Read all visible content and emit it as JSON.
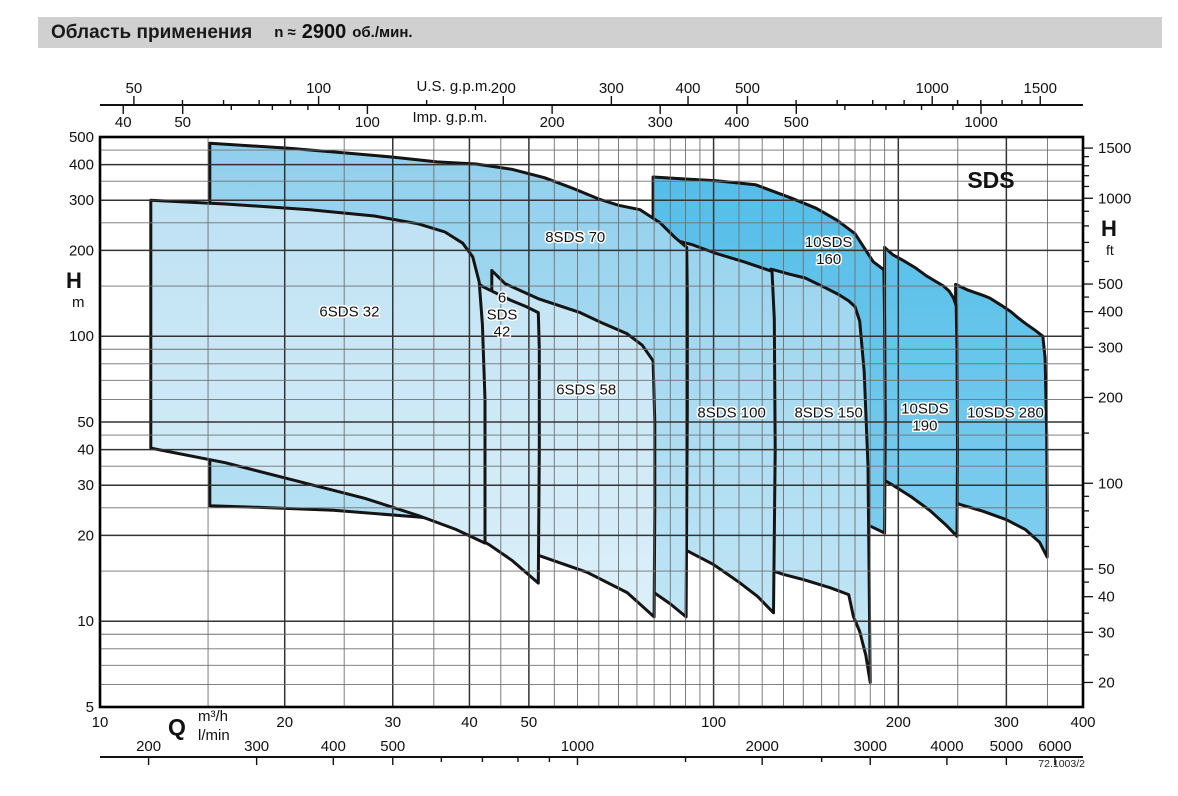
{
  "header": {
    "title": "Область применения",
    "n_prefix": "n ≈",
    "n_value": "2900",
    "n_unit": "об./мин."
  },
  "branding": {
    "series_label": "SDS",
    "doc_code": "72.1003/2"
  },
  "axes": {
    "us_gpm": {
      "label": "U.S. g.p.m.",
      "to_m3h": 0.22712,
      "ticks": [
        [
          50,
          1
        ],
        [
          60,
          0
        ],
        [
          70,
          0
        ],
        [
          80,
          0
        ],
        [
          90,
          0
        ],
        [
          100,
          1
        ],
        [
          150,
          0
        ],
        [
          200,
          1
        ],
        [
          300,
          1
        ],
        [
          400,
          1
        ],
        [
          500,
          1
        ],
        [
          600,
          0
        ],
        [
          700,
          0
        ],
        [
          800,
          0
        ],
        [
          900,
          0
        ],
        [
          1000,
          1
        ],
        [
          1100,
          0
        ],
        [
          1200,
          0
        ],
        [
          1300,
          0
        ],
        [
          1400,
          0
        ],
        [
          1500,
          1
        ]
      ]
    },
    "imp_gpm": {
      "label": "Imp. g.p.m.",
      "to_m3h": 0.27277,
      "ticks": [
        [
          40,
          1
        ],
        [
          50,
          1
        ],
        [
          60,
          0
        ],
        [
          70,
          0
        ],
        [
          80,
          0
        ],
        [
          90,
          0
        ],
        [
          100,
          1
        ],
        [
          150,
          0
        ],
        [
          200,
          1
        ],
        [
          300,
          1
        ],
        [
          400,
          1
        ],
        [
          500,
          1
        ],
        [
          600,
          0
        ],
        [
          700,
          0
        ],
        [
          800,
          0
        ],
        [
          900,
          0
        ],
        [
          1000,
          1
        ]
      ]
    },
    "h_m": {
      "label": "H",
      "unit": "m",
      "labels": [
        5,
        10,
        20,
        30,
        40,
        50,
        100,
        200,
        300,
        400,
        500
      ]
    },
    "h_ft": {
      "label": "H",
      "unit": "ft",
      "to_m": 0.3048,
      "ticks": [
        [
          20,
          1
        ],
        [
          25,
          0
        ],
        [
          30,
          1
        ],
        [
          35,
          0
        ],
        [
          40,
          1
        ],
        [
          45,
          0
        ],
        [
          50,
          1
        ],
        [
          60,
          0
        ],
        [
          70,
          0
        ],
        [
          80,
          0
        ],
        [
          90,
          0
        ],
        [
          100,
          1
        ],
        [
          150,
          0
        ],
        [
          200,
          1
        ],
        [
          250,
          0
        ],
        [
          300,
          1
        ],
        [
          350,
          0
        ],
        [
          400,
          1
        ],
        [
          450,
          0
        ],
        [
          500,
          1
        ],
        [
          600,
          0
        ],
        [
          700,
          0
        ],
        [
          800,
          0
        ],
        [
          900,
          0
        ],
        [
          1000,
          1
        ],
        [
          1100,
          0
        ],
        [
          1200,
          0
        ],
        [
          1300,
          0
        ],
        [
          1400,
          0
        ],
        [
          1500,
          1
        ]
      ]
    },
    "q_m3h": {
      "label": "Q",
      "unit": "m³/h",
      "labels": [
        10,
        20,
        30,
        40,
        50,
        100,
        200,
        300,
        400
      ]
    },
    "l_min": {
      "unit": "l/min",
      "to_m3h": 0.06,
      "ticks": [
        [
          200,
          1
        ],
        [
          300,
          1
        ],
        [
          400,
          1
        ],
        [
          500,
          1
        ],
        [
          600,
          0
        ],
        [
          700,
          0
        ],
        [
          800,
          0
        ],
        [
          900,
          0
        ],
        [
          1000,
          1
        ],
        [
          1500,
          0
        ],
        [
          2000,
          1
        ],
        [
          2500,
          0
        ],
        [
          3000,
          1
        ],
        [
          4000,
          1
        ],
        [
          5000,
          1
        ],
        [
          6000,
          1
        ]
      ]
    }
  },
  "chart_data": {
    "type": "area",
    "title": "Область применения n ≈ 2900 об./мин.",
    "x_axis": {
      "label": "Q",
      "units": [
        "m³/h",
        "l/min",
        "U.S. g.p.m.",
        "Imp. g.p.m."
      ],
      "scale": "log",
      "range_m3h": [
        10,
        400
      ]
    },
    "y_axis": {
      "label": "H",
      "units": [
        "m",
        "ft"
      ],
      "scale": "log",
      "range_m": [
        5,
        500
      ]
    },
    "grid": {
      "q_lines": [
        10,
        15,
        20,
        25,
        30,
        35,
        40,
        45,
        50,
        55,
        60,
        65,
        70,
        75,
        80,
        85,
        90,
        95,
        100,
        110,
        120,
        130,
        140,
        150,
        160,
        170,
        180,
        190,
        200,
        250,
        300,
        350,
        400
      ],
      "q_major": [
        10,
        20,
        30,
        40,
        50,
        100,
        200,
        300,
        400
      ],
      "h_lines": [
        5,
        6,
        7,
        8,
        9,
        10,
        15,
        20,
        25,
        30,
        35,
        40,
        45,
        50,
        60,
        70,
        80,
        90,
        100,
        150,
        200,
        250,
        300,
        350,
        400,
        450,
        500
      ],
      "h_major": [
        5,
        10,
        20,
        30,
        40,
        50,
        100,
        200,
        300,
        400,
        500
      ]
    },
    "families": {
      "sds6": {
        "top": "#badff2",
        "bottom": "#e2f3fb"
      },
      "sds8": {
        "top": "#8fcfec",
        "bottom": "#c9e9f7"
      },
      "sds10": {
        "top": "#4fbce7",
        "bottom": "#90d4f2"
      }
    },
    "stroke_color": "#141414",
    "regions": [
      {
        "id": "10sds-280",
        "family": "sds10",
        "label_lines": [
          "10SDS 280"
        ],
        "label_anchor": [
          299,
          54
        ],
        "points": [
          [
            248,
            152
          ],
          [
            260,
            145
          ],
          [
            275,
            139
          ],
          [
            282,
            136
          ],
          [
            295,
            128
          ],
          [
            305,
            122
          ],
          [
            312,
            117
          ],
          [
            322,
            111
          ],
          [
            334,
            105
          ],
          [
            344,
            100
          ],
          [
            347,
            84
          ],
          [
            349,
            45
          ],
          [
            349.7,
            25
          ],
          [
            349.5,
            16.8
          ],
          [
            340,
            18.9
          ],
          [
            322,
            21
          ],
          [
            300,
            22.7
          ],
          [
            275,
            24.3
          ],
          [
            252,
            25.7
          ],
          [
            248,
            26.1
          ]
        ]
      },
      {
        "id": "10sds-190",
        "family": "sds10",
        "label_lines": [
          "10SDS",
          "190"
        ],
        "label_anchor": [
          221,
          52
        ],
        "points": [
          [
            190,
            205
          ],
          [
            196,
            193
          ],
          [
            204,
            184
          ],
          [
            213,
            174
          ],
          [
            222,
            163
          ],
          [
            231,
            155
          ],
          [
            237,
            150
          ],
          [
            242,
            144
          ],
          [
            246,
            136
          ],
          [
            248.5,
            128
          ],
          [
            249.3,
            90
          ],
          [
            249.7,
            40
          ],
          [
            249.3,
            19.85
          ],
          [
            240,
            21.6
          ],
          [
            225,
            24.5
          ],
          [
            210,
            27.3
          ],
          [
            195,
            30.2
          ],
          [
            190,
            31.2
          ]
        ]
      },
      {
        "id": "10sds-160",
        "family": "sds10",
        "label_lines": [
          "10SDS",
          "160"
        ],
        "label_anchor": [
          154,
          200
        ],
        "points": [
          [
            79.7,
            362
          ],
          [
            90,
            356
          ],
          [
            101,
            351
          ],
          [
            117,
            340
          ],
          [
            134,
            305
          ],
          [
            147,
            281
          ],
          [
            159,
            255
          ],
          [
            170,
            229
          ],
          [
            182,
            182.5
          ],
          [
            189.5,
            171
          ],
          [
            190,
            115
          ],
          [
            190.5,
            50
          ],
          [
            190,
            20.4
          ],
          [
            178,
            21.8
          ],
          [
            160,
            23.2
          ],
          [
            130,
            25.2
          ],
          [
            100,
            27
          ],
          [
            79.7,
            28.2
          ]
        ]
      },
      {
        "id": "8sds-150",
        "family": "sds8",
        "label_lines": [
          "8SDS 150"
        ],
        "label_anchor": [
          154,
          54
        ],
        "points": [
          [
            124,
            172
          ],
          [
            133,
            165
          ],
          [
            141,
            160
          ],
          [
            152,
            148
          ],
          [
            160,
            140
          ],
          [
            166,
            133
          ],
          [
            170,
            127
          ],
          [
            173,
            113
          ],
          [
            176,
            75
          ],
          [
            178.5,
            35
          ],
          [
            180,
            6.1
          ],
          [
            177,
            7.6
          ],
          [
            173,
            9.2
          ],
          [
            169,
            10.4
          ],
          [
            166,
            12.4
          ],
          [
            155,
            13.1
          ],
          [
            140,
            14
          ],
          [
            130,
            14.6
          ],
          [
            124,
            15.1
          ]
        ]
      },
      {
        "id": "8sds-100",
        "family": "sds8",
        "label_lines": [
          "8SDS 100"
        ],
        "label_anchor": [
          107,
          54
        ],
        "points": [
          [
            87.5,
            216
          ],
          [
            92,
            210
          ],
          [
            101,
            195
          ],
          [
            112.4,
            182
          ],
          [
            124.5,
            169
          ],
          [
            125.6,
            115
          ],
          [
            126,
            40
          ],
          [
            125.2,
            10.7
          ],
          [
            118,
            12.2
          ],
          [
            110,
            13.7
          ],
          [
            100,
            15.8
          ],
          [
            90.8,
            17.6
          ],
          [
            87.5,
            18.2
          ]
        ]
      },
      {
        "id": "8sds-70",
        "family": "sds8",
        "label_lines": [
          "8SDS 70"
        ],
        "label_anchor": [
          59.5,
          223
        ],
        "points": [
          [
            15.1,
            475
          ],
          [
            20.2,
            457
          ],
          [
            25.3,
            439
          ],
          [
            30,
            425
          ],
          [
            35.4,
            409
          ],
          [
            41,
            402
          ],
          [
            47,
            385
          ],
          [
            53,
            360
          ],
          [
            59,
            330
          ],
          [
            65,
            303
          ],
          [
            70,
            288
          ],
          [
            75.9,
            278
          ],
          [
            81.8,
            250
          ],
          [
            86.5,
            222
          ],
          [
            90.4,
            205
          ],
          [
            90.6,
            140
          ],
          [
            90.6,
            55
          ],
          [
            90.2,
            10.35
          ],
          [
            85,
            11.5
          ],
          [
            80,
            12.6
          ],
          [
            70,
            14.7
          ],
          [
            60,
            17.1
          ],
          [
            50,
            19.7
          ],
          [
            43,
            21.8
          ],
          [
            33,
            23.2
          ],
          [
            24,
            24.5
          ],
          [
            18,
            25.1
          ],
          [
            15.1,
            25.4
          ]
        ]
      },
      {
        "id": "6sds-58",
        "family": "sds6",
        "label_lines": [
          "6SDS 58"
        ],
        "label_anchor": [
          62,
          65
        ],
        "points": [
          [
            43.5,
            170
          ],
          [
            45.7,
            153
          ],
          [
            52,
            135
          ],
          [
            60.6,
            121
          ],
          [
            66,
            111
          ],
          [
            72.3,
            102
          ],
          [
            76.5,
            93
          ],
          [
            79.7,
            82
          ],
          [
            80.2,
            50
          ],
          [
            80.2,
            25
          ],
          [
            80,
            10.35
          ],
          [
            72.3,
            12.6
          ],
          [
            62.2,
            14.85
          ],
          [
            52.5,
            16.85
          ],
          [
            44,
            19.5
          ],
          [
            43.5,
            21
          ]
        ]
      },
      {
        "id": "6sds-42",
        "family": "sds6",
        "label_lines": [
          "6",
          "SDS",
          "42"
        ],
        "label_anchor": [
          45.2,
          119
        ],
        "points": [
          [
            36,
            195
          ],
          [
            36.5,
            188
          ],
          [
            39.4,
            164
          ],
          [
            42.1,
            149
          ],
          [
            46.6,
            134
          ],
          [
            49.5,
            127
          ],
          [
            51.8,
            121
          ],
          [
            52,
            90
          ],
          [
            52,
            40
          ],
          [
            51.8,
            13.6
          ],
          [
            47,
            16.3
          ],
          [
            43,
            18.6
          ],
          [
            40,
            20.3
          ],
          [
            36,
            22.5
          ]
        ]
      },
      {
        "id": "6sds-32",
        "family": "sds6",
        "label_lines": [
          "6SDS 32"
        ],
        "label_anchor": [
          25.5,
          122
        ],
        "points": [
          [
            12.1,
            300
          ],
          [
            16,
            291
          ],
          [
            22,
            278
          ],
          [
            28,
            264
          ],
          [
            33,
            248
          ],
          [
            36.5,
            232
          ],
          [
            39,
            212
          ],
          [
            40.5,
            190
          ],
          [
            41.5,
            155
          ],
          [
            42,
            110
          ],
          [
            42.4,
            60
          ],
          [
            42.4,
            18.8
          ],
          [
            38,
            21
          ],
          [
            33,
            23.5
          ],
          [
            27,
            27
          ],
          [
            21,
            31
          ],
          [
            16,
            36
          ],
          [
            12.1,
            40.5
          ]
        ]
      }
    ]
  }
}
